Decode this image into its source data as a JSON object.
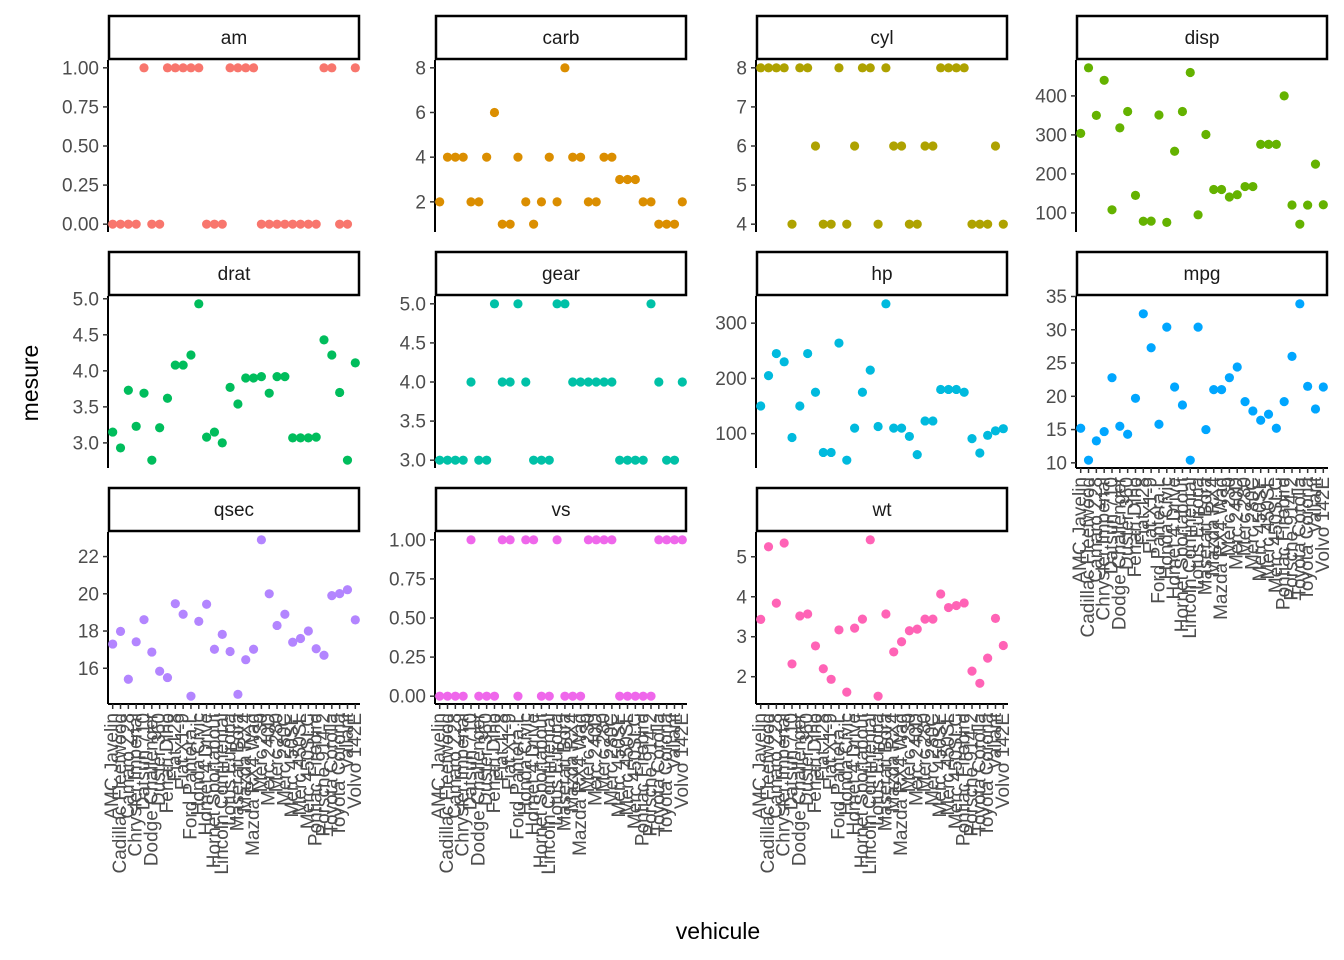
{
  "chart_data": {
    "type": "scatter",
    "title": "",
    "xlabel": "vehicule",
    "ylabel": "mesure",
    "facet_layout": "4 columns, free y scales, shared x",
    "grid": false,
    "legend": "none",
    "categories": [
      "AMC Javelin",
      "Cadillac Fleetwood",
      "Camaro Z28",
      "Chrysler Imperial",
      "Datsun 710",
      "Dodge Challenger",
      "Duster 360",
      "Ferrari Dino",
      "Fiat 128",
      "Fiat X1-9",
      "Ford Pantera L",
      "Honda Civic",
      "Hornet 4 Drive",
      "Hornet Sportabout",
      "Lincoln Continental",
      "Lotus Europa",
      "Maserati Bora",
      "Mazda RX4",
      "Mazda RX4 Wag",
      "Merc 230",
      "Merc 240D",
      "Merc 280",
      "Merc 280C",
      "Merc 450SE",
      "Merc 450SL",
      "Merc 450SLC",
      "Pontiac Firebird",
      "Porsche 914-2",
      "Toyota Corolla",
      "Toyota Corona",
      "Valiant",
      "Volvo 142E"
    ],
    "facets": [
      {
        "name": "am",
        "color": "#F8766D",
        "ticks": [
          "0.00",
          "0.25",
          "0.50",
          "0.75",
          "1.00"
        ],
        "tick_values": [
          0,
          0.25,
          0.5,
          0.75,
          1
        ],
        "values": [
          0,
          0,
          0,
          0,
          1,
          0,
          0,
          1,
          1,
          1,
          1,
          1,
          0,
          0,
          0,
          1,
          1,
          1,
          1,
          0,
          0,
          0,
          0,
          0,
          0,
          0,
          0,
          1,
          1,
          0,
          0,
          1
        ]
      },
      {
        "name": "carb",
        "color": "#DB8E00",
        "ticks": [
          "2",
          "4",
          "6",
          "8"
        ],
        "tick_values": [
          2,
          4,
          6,
          8
        ],
        "values": [
          2,
          4,
          4,
          4,
          2,
          2,
          4,
          6,
          1,
          1,
          4,
          2,
          1,
          2,
          4,
          2,
          8,
          4,
          4,
          2,
          2,
          4,
          4,
          3,
          3,
          3,
          2,
          2,
          1,
          1,
          1,
          2
        ]
      },
      {
        "name": "cyl",
        "color": "#AEA200",
        "ticks": [
          "4",
          "5",
          "6",
          "7",
          "8"
        ],
        "tick_values": [
          4,
          5,
          6,
          7,
          8
        ],
        "values": [
          8,
          8,
          8,
          8,
          4,
          8,
          8,
          6,
          4,
          4,
          8,
          4,
          6,
          8,
          8,
          4,
          8,
          6,
          6,
          4,
          4,
          6,
          6,
          8,
          8,
          8,
          8,
          4,
          4,
          4,
          6,
          4
        ]
      },
      {
        "name": "disp",
        "color": "#64B200",
        "ticks": [
          "100",
          "200",
          "300",
          "400"
        ],
        "tick_values": [
          100,
          200,
          300,
          400
        ],
        "values": [
          304,
          472,
          350,
          440,
          108,
          318,
          360,
          145,
          78.7,
          79,
          351,
          75.7,
          258,
          360,
          460,
          95.1,
          301,
          160,
          160,
          140.8,
          146.7,
          167.6,
          167.6,
          275.8,
          275.8,
          275.8,
          400,
          120.3,
          71.1,
          120.1,
          225,
          121
        ]
      },
      {
        "name": "drat",
        "color": "#00BD5C",
        "ticks": [
          "3.0",
          "3.5",
          "4.0",
          "4.5",
          "5.0"
        ],
        "tick_values": [
          3,
          3.5,
          4,
          4.5,
          5
        ],
        "values": [
          3.15,
          2.93,
          3.73,
          3.23,
          3.69,
          2.76,
          3.21,
          3.62,
          4.08,
          4.08,
          4.22,
          4.93,
          3.08,
          3.15,
          3.0,
          3.77,
          3.54,
          3.9,
          3.9,
          3.92,
          3.69,
          3.92,
          3.92,
          3.07,
          3.07,
          3.07,
          3.08,
          4.43,
          4.22,
          3.7,
          2.76,
          4.11
        ]
      },
      {
        "name": "gear",
        "color": "#00C1A7",
        "ticks": [
          "3.0",
          "3.5",
          "4.0",
          "4.5",
          "5.0"
        ],
        "tick_values": [
          3,
          3.5,
          4,
          4.5,
          5
        ],
        "values": [
          3,
          3,
          3,
          3,
          4,
          3,
          3,
          5,
          4,
          4,
          5,
          4,
          3,
          3,
          3,
          5,
          5,
          4,
          4,
          4,
          4,
          4,
          4,
          3,
          3,
          3,
          3,
          5,
          4,
          3,
          3,
          4
        ]
      },
      {
        "name": "hp",
        "color": "#00BADE",
        "ticks": [
          "100",
          "200",
          "300"
        ],
        "tick_values": [
          100,
          200,
          300
        ],
        "values": [
          150,
          205,
          245,
          230,
          93,
          150,
          245,
          175,
          66,
          66,
          264,
          52,
          110,
          175,
          215,
          113,
          335,
          110,
          110,
          95,
          62,
          123,
          123,
          180,
          180,
          180,
          175,
          91,
          65,
          97,
          105,
          109
        ]
      },
      {
        "name": "mpg",
        "color": "#00A6FF",
        "ticks": [
          "10",
          "15",
          "20",
          "25",
          "30",
          "35"
        ],
        "tick_values": [
          10,
          15,
          20,
          25,
          30,
          35
        ],
        "values": [
          15.2,
          10.4,
          13.3,
          14.7,
          22.8,
          15.5,
          14.3,
          19.7,
          32.4,
          27.3,
          15.8,
          30.4,
          21.4,
          18.7,
          10.4,
          30.4,
          15.0,
          21.0,
          21.0,
          22.8,
          24.4,
          19.2,
          17.8,
          16.4,
          17.3,
          15.2,
          19.2,
          26.0,
          33.9,
          21.5,
          18.1,
          21.4
        ]
      },
      {
        "name": "qsec",
        "color": "#B385FF",
        "ticks": [
          "16",
          "18",
          "20",
          "22"
        ],
        "tick_values": [
          16,
          18,
          20,
          22
        ],
        "values": [
          17.3,
          17.98,
          15.41,
          17.42,
          18.61,
          16.87,
          15.84,
          15.5,
          19.47,
          18.9,
          14.5,
          18.52,
          19.44,
          17.02,
          17.82,
          16.9,
          14.6,
          16.46,
          17.02,
          22.9,
          20.0,
          18.3,
          18.9,
          17.4,
          17.6,
          18.0,
          17.05,
          16.7,
          19.9,
          20.01,
          20.22,
          18.6
        ]
      },
      {
        "name": "vs",
        "color": "#EF67EB",
        "ticks": [
          "0.00",
          "0.25",
          "0.50",
          "0.75",
          "1.00"
        ],
        "tick_values": [
          0,
          0.25,
          0.5,
          0.75,
          1
        ],
        "values": [
          0,
          0,
          0,
          0,
          1,
          0,
          0,
          0,
          1,
          1,
          0,
          1,
          1,
          0,
          0,
          1,
          0,
          0,
          0,
          1,
          1,
          1,
          1,
          0,
          0,
          0,
          0,
          0,
          1,
          1,
          1,
          1
        ]
      },
      {
        "name": "wt",
        "color": "#FF63B6",
        "ticks": [
          "2",
          "3",
          "4",
          "5"
        ],
        "tick_values": [
          2,
          3,
          4,
          5
        ],
        "values": [
          3.435,
          5.25,
          3.84,
          5.345,
          2.32,
          3.52,
          3.57,
          2.77,
          2.2,
          1.935,
          3.17,
          1.615,
          3.215,
          3.44,
          5.424,
          1.513,
          3.57,
          2.62,
          2.875,
          3.15,
          3.19,
          3.44,
          3.44,
          4.07,
          3.73,
          3.78,
          3.845,
          2.14,
          1.835,
          2.465,
          3.46,
          2.78
        ]
      }
    ]
  }
}
